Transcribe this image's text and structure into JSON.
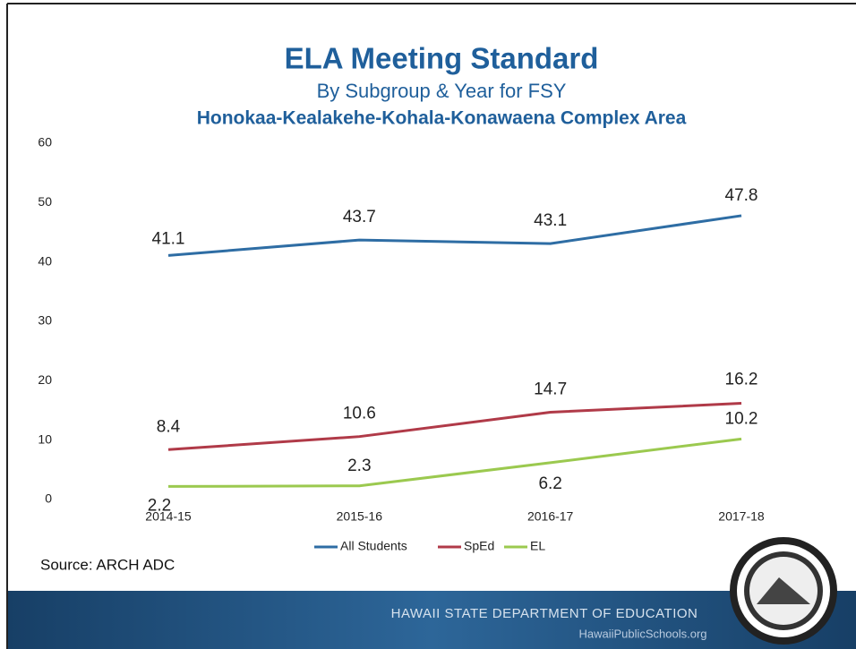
{
  "chart_data": {
    "type": "line",
    "title": "ELA Meeting Standard",
    "subtitle": "By Subgroup & Year for FSY",
    "subtitle2": "Honokaa-Kealakehe-Kohala-Konawaena Complex Area",
    "categories": [
      "2014-15",
      "2015-16",
      "2016-17",
      "2017-18"
    ],
    "series": [
      {
        "name": "All Students",
        "color": "#2e6da4",
        "values": [
          41.1,
          43.7,
          43.1,
          47.8
        ]
      },
      {
        "name": "SpEd",
        "color": "#b03a48",
        "values": [
          8.4,
          10.6,
          14.7,
          16.2
        ]
      },
      {
        "name": "EL",
        "color": "#9bc94f",
        "values": [
          2.2,
          2.3,
          6.2,
          10.2
        ]
      }
    ],
    "ylim": [
      0,
      60
    ],
    "yticks": [
      0,
      10,
      20,
      30,
      40,
      50,
      60
    ],
    "grid": false,
    "legend": "bottom",
    "source": "Source: ARCH ADC"
  },
  "footer": {
    "org": "HAWAII STATE DEPARTMENT OF EDUCATION",
    "site": "HawaiiPublicSchools.org"
  }
}
